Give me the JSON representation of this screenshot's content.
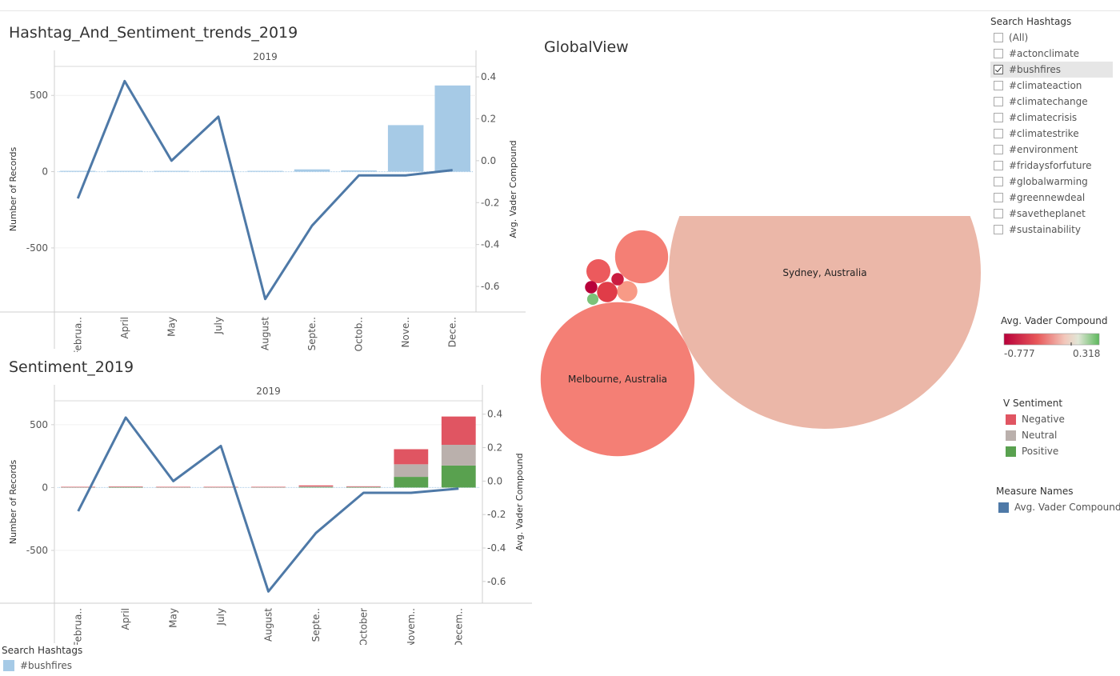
{
  "colors": {
    "line": "#4e79a7",
    "bar_hashtag": "#a6cae6",
    "negative": "#e05562",
    "neutral": "#bab0ac",
    "positive": "#59a14f",
    "zero_line": "#a6cae6"
  },
  "chart_data": [
    {
      "type": "bar",
      "title": "Hashtag_And_Sentiment_trends_2019",
      "header": "2019",
      "categories": [
        "Februa..",
        "April",
        "May",
        "July",
        "August",
        "Septe..",
        "Octob..",
        "Nove..",
        "Dece.."
      ],
      "ylabel": "Number of Records",
      "y2label": "Avg. Vader Compound",
      "ylim": [
        -920,
        690
      ],
      "yticks": [
        500,
        0,
        -500
      ],
      "y2lim": [
        -0.722,
        0.45
      ],
      "y2ticks": [
        0.4,
        0.2,
        0.0,
        -0.2,
        -0.4,
        -0.6
      ],
      "y2ticklabels": [
        "0.4",
        "0.2",
        "0.0",
        "-0.2",
        "-0.4",
        "-0.6"
      ],
      "series": [
        {
          "name": "#bushfires",
          "kind": "bar",
          "axis": "left",
          "values": [
            2,
            3,
            2,
            3,
            3,
            15,
            8,
            305,
            565
          ]
        },
        {
          "name": "Avg. Vader Compound",
          "kind": "line",
          "axis": "right",
          "values": [
            -0.18,
            0.38,
            0.0,
            0.21,
            -0.66,
            -0.31,
            -0.07,
            -0.07,
            -0.045
          ]
        }
      ]
    },
    {
      "type": "bar",
      "title": "Sentiment_2019",
      "header": "2019",
      "categories": [
        "Februa..",
        "April",
        "May",
        "July",
        "August",
        "Septe..",
        "October",
        "Novem..",
        "Decem.."
      ],
      "ylabel": "Number of Records",
      "y2label": "Avg. Vader Compound",
      "ylim": [
        -920,
        690
      ],
      "yticks": [
        500,
        0,
        -500
      ],
      "y2lim": [
        -0.73,
        0.48
      ],
      "y2ticks": [
        0.4,
        0.2,
        0.0,
        -0.2,
        -0.4,
        -0.6
      ],
      "y2ticklabels": [
        "0.4",
        "0.2",
        "0.0",
        "-0.2",
        "-0.4",
        "-0.6"
      ],
      "stack_series": [
        {
          "name": "Positive",
          "values": [
            1,
            3,
            1,
            1,
            1,
            4,
            3,
            85,
            175
          ]
        },
        {
          "name": "Neutral",
          "values": [
            1,
            1,
            1,
            1,
            1,
            5,
            3,
            100,
            165
          ]
        },
        {
          "name": "Negative",
          "values": [
            1,
            1,
            1,
            1,
            1,
            8,
            4,
            120,
            225
          ]
        }
      ],
      "line_series": {
        "name": "Avg. Vader Compound",
        "values": [
          -0.18,
          0.38,
          0.0,
          0.21,
          -0.66,
          -0.31,
          -0.07,
          -0.07,
          -0.045
        ]
      }
    },
    {
      "type": "packed-bubble",
      "title": "GlobalView",
      "color_measure": "Avg. Vader Compound",
      "bubbles": [
        {
          "label": "Sydney, Australia",
          "size": 152,
          "vader": -0.12
        },
        {
          "label": "Melbourne, Australia",
          "size": 37,
          "vader": -0.25
        },
        {
          "label": "",
          "size": 4.4,
          "vader": -0.25
        },
        {
          "label": "",
          "size": 0.9,
          "vader": -0.35
        },
        {
          "label": "",
          "size": 0.65,
          "vader": -0.2
        },
        {
          "label": "",
          "size": 0.65,
          "vader": -0.5
        },
        {
          "label": "",
          "size": 0.24,
          "vader": -0.65
        },
        {
          "label": "",
          "size": 0.24,
          "vader": -0.777
        },
        {
          "label": "",
          "size": 0.2,
          "vader": 0.25
        }
      ]
    }
  ],
  "filters": {
    "title": "Search Hashtags",
    "items": [
      {
        "label": "(All)",
        "checked": false
      },
      {
        "label": "#actonclimate",
        "checked": false
      },
      {
        "label": "#bushfires",
        "checked": true
      },
      {
        "label": "#climateaction",
        "checked": false
      },
      {
        "label": "#climatechange",
        "checked": false
      },
      {
        "label": "#climatecrisis",
        "checked": false
      },
      {
        "label": "#climatestrike",
        "checked": false
      },
      {
        "label": "#environment",
        "checked": false
      },
      {
        "label": "#fridaysforfuture",
        "checked": false
      },
      {
        "label": "#globalwarming",
        "checked": false
      },
      {
        "label": "#greennewdeal",
        "checked": false
      },
      {
        "label": "#savetheplanet",
        "checked": false
      },
      {
        "label": "#sustainability",
        "checked": false
      }
    ]
  },
  "color_legend": {
    "title": "Avg. Vader Compound",
    "min_label": "-0.777",
    "max_label": "0.318"
  },
  "sentiment_legend": {
    "title": "V Sentiment",
    "items": [
      "Negative",
      "Neutral",
      "Positive"
    ]
  },
  "measure_legend": {
    "title": "Measure Names",
    "item": "Avg. Vader Compound"
  },
  "hashtag_legend": {
    "title": "Search Hashtags",
    "item": "#bushfires"
  }
}
